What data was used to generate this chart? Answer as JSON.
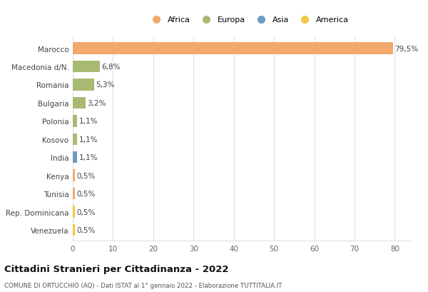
{
  "categories": [
    "Marocco",
    "Macedonia d/N.",
    "Romania",
    "Bulgaria",
    "Polonia",
    "Kosovo",
    "India",
    "Kenya",
    "Tunisia",
    "Rep. Dominicana",
    "Venezuela"
  ],
  "values": [
    79.5,
    6.8,
    5.3,
    3.2,
    1.1,
    1.1,
    1.1,
    0.5,
    0.5,
    0.5,
    0.5
  ],
  "labels": [
    "79,5%",
    "6,8%",
    "5,3%",
    "3,2%",
    "1,1%",
    "1,1%",
    "1,1%",
    "0,5%",
    "0,5%",
    "0,5%",
    "0,5%"
  ],
  "colors": [
    "#F2A96E",
    "#A8BA72",
    "#A8BA72",
    "#A8BA72",
    "#A8BA72",
    "#A8BA72",
    "#6B9DC2",
    "#F2A96E",
    "#F2A96E",
    "#F0C840",
    "#F0C840"
  ],
  "legend_labels": [
    "Africa",
    "Europa",
    "Asia",
    "America"
  ],
  "legend_colors": [
    "#F2A96E",
    "#A8BA72",
    "#6B9DC2",
    "#F0C840"
  ],
  "title": "Cittadini Stranieri per Cittadinanza - 2022",
  "subtitle": "COMUNE DI ORTUCCHIO (AQ) - Dati ISTAT al 1° gennaio 2022 - Elaborazione TUTTITALIA.IT",
  "xlim": [
    0,
    84
  ],
  "xticks": [
    0,
    10,
    20,
    30,
    40,
    50,
    60,
    70,
    80
  ],
  "background_color": "#ffffff",
  "grid_color": "#e0e0e0",
  "bar_height": 0.65,
  "label_fontsize": 7.5,
  "ytick_fontsize": 7.5,
  "xtick_fontsize": 7.5
}
